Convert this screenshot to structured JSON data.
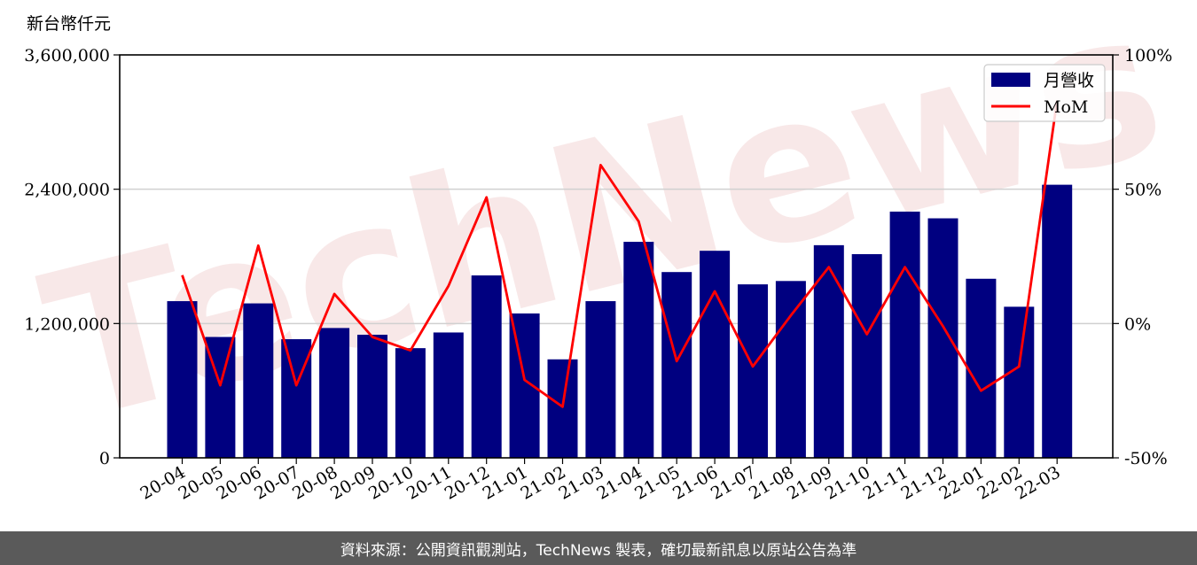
{
  "chart_data": {
    "type": "bar+line",
    "y_unit_label": "新台幣仟元",
    "categories": [
      "20-04",
      "20-05",
      "20-06",
      "20-07",
      "20-08",
      "20-09",
      "20-10",
      "20-11",
      "20-12",
      "21-01",
      "21-02",
      "21-03",
      "21-04",
      "21-05",
      "21-06",
      "21-07",
      "21-08",
      "21-09",
      "21-10",
      "21-11",
      "21-12",
      "22-01",
      "22-02",
      "22-03"
    ],
    "series": [
      {
        "name": "月營收",
        "axis": "left",
        "type": "bar",
        "color": "#000080",
        "values": [
          1400000,
          1080000,
          1380000,
          1060000,
          1160000,
          1100000,
          980000,
          1120000,
          1630000,
          1290000,
          880000,
          1400000,
          1930000,
          1660000,
          1850000,
          1550000,
          1580000,
          1900000,
          1820000,
          2200000,
          2140000,
          1600000,
          1350000,
          2440000
        ]
      },
      {
        "name": "MoM",
        "axis": "right",
        "type": "line",
        "color": "#ff0000",
        "values": [
          18,
          -23,
          29,
          -23,
          11,
          -5,
          -10,
          14,
          47,
          -21,
          -31,
          59,
          38,
          -14,
          12,
          -16,
          3,
          21,
          -4,
          21,
          -1,
          -25,
          -16,
          83
        ]
      }
    ],
    "y_left": {
      "min": 0,
      "max": 3600000,
      "ticks": [
        "0",
        "1,200,000",
        "2,400,000",
        "3,600,000"
      ]
    },
    "y_right": {
      "min": -50,
      "max": 100,
      "ticks": [
        "-50%",
        "0%",
        "50%",
        "100%"
      ]
    },
    "grid": "horizontal",
    "legend_position": "top-right"
  },
  "watermark": "TechNews",
  "footer": {
    "text": "資料來源：公開資訊觀測站，TechNews 製表，確切最新訊息以原站公告為準"
  }
}
